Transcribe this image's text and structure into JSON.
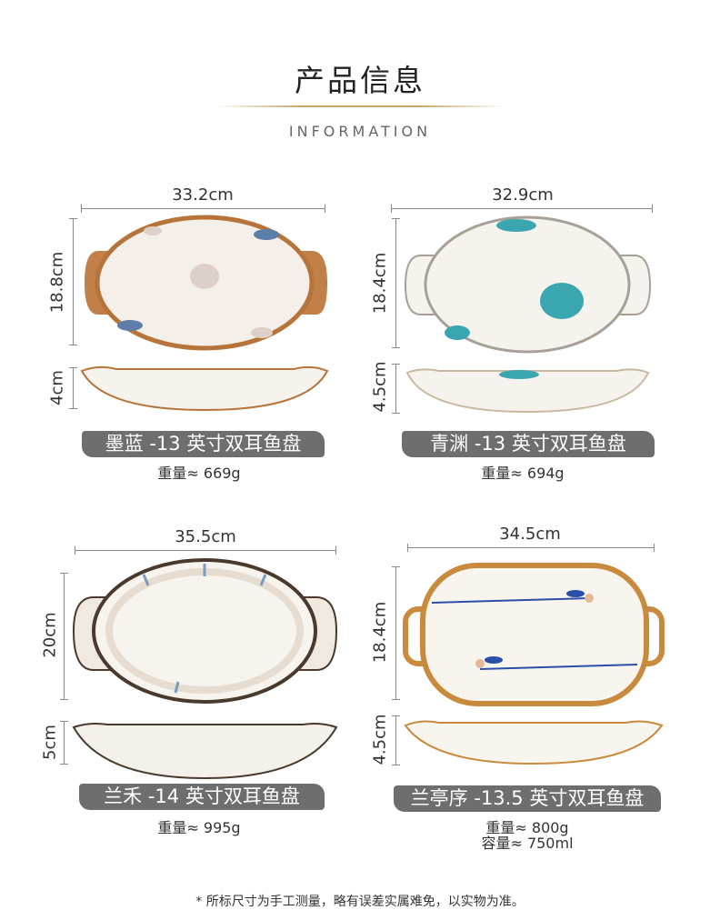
{
  "header": {
    "title": "产品信息",
    "subtitle": "INFORMATION"
  },
  "products": [
    {
      "width": "33.2cm",
      "height": "18.8cm",
      "depth": "4cm",
      "name": "墨蓝 -13 英寸双耳鱼盘",
      "weight": "重量≈ 669g",
      "rim_color": "#b7743a",
      "flower_color": "#5b7fa8"
    },
    {
      "width": "32.9cm",
      "height": "18.4cm",
      "depth": "4.5cm",
      "name": "青渊 -13 英寸双耳鱼盘",
      "weight": "重量≈ 694g",
      "rim_color": "#a8a096",
      "flower_color": "#3aa6b0"
    },
    {
      "width": "35.5cm",
      "height": "20cm",
      "depth": "5cm",
      "name": "兰禾 -14 英寸双耳鱼盘",
      "weight": "重量≈ 995g",
      "rim_color": "#4a3a2e",
      "flower_color": "#7a9cc0"
    },
    {
      "width": "34.5cm",
      "height": "18.4cm",
      "depth": "4.5cm",
      "name": "兰亭序 -13.5 英寸双耳鱼盘",
      "weight": "重量≈ 800g",
      "capacity": "容量≈ 750ml",
      "rim_color": "#c98a3e",
      "flower_color": "#2a4fa8"
    }
  ],
  "footer": {
    "note": "* 所标尺寸为手工测量，略有误差实属难免，以实物为准。"
  }
}
